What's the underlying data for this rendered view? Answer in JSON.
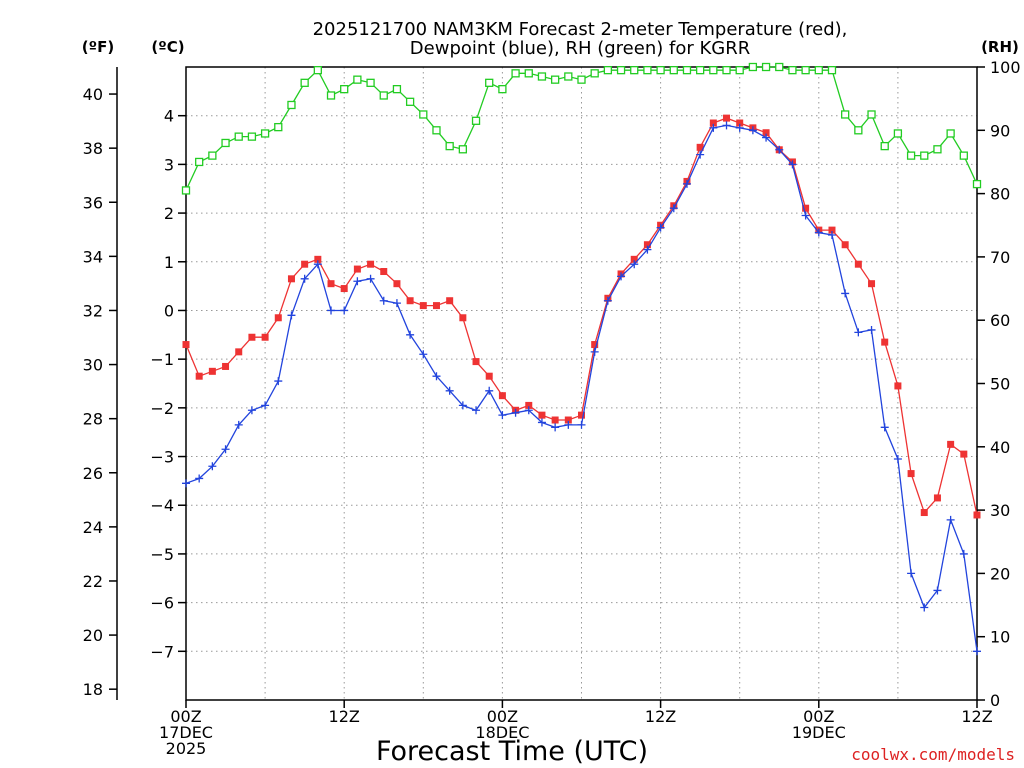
{
  "chart_data": {
    "type": "line",
    "title_line1": "2025121700 NAM3KM Forecast 2-meter Temperature (red),",
    "title_line2": "Dewpoint (blue), RH (green) for KGRR",
    "xlabel": "Forecast Time (UTC)",
    "credit": "coolwx.com/models",
    "unit_labels": {
      "fahrenheit": "(ºF)",
      "celsius": "(ºC)",
      "rh": "(RH)"
    },
    "x_range_hours": [
      0,
      60
    ],
    "x_ticks": [
      {
        "hour": 0,
        "lines": [
          "00Z",
          "17DEC",
          "2025"
        ]
      },
      {
        "hour": 12,
        "lines": [
          "12Z"
        ]
      },
      {
        "hour": 24,
        "lines": [
          "00Z",
          "18DEC"
        ]
      },
      {
        "hour": 36,
        "lines": [
          "12Z"
        ]
      },
      {
        "hour": 48,
        "lines": [
          "00Z",
          "19DEC"
        ]
      },
      {
        "hour": 60,
        "lines": [
          "12Z"
        ]
      }
    ],
    "celsius_range": [
      -8,
      5
    ],
    "celsius_ticks": [
      "4",
      "3",
      "2",
      "1",
      "0",
      "-1",
      "-2",
      "-3",
      "-4",
      "-5",
      "-6",
      "-7"
    ],
    "fahrenheit_ticks": [
      "40",
      "38",
      "36",
      "34",
      "32",
      "30",
      "28",
      "26",
      "24",
      "22",
      "20",
      "18"
    ],
    "rh_range": [
      0,
      100
    ],
    "rh_ticks": [
      "100",
      "90",
      "80",
      "70",
      "60",
      "50",
      "40",
      "30",
      "20",
      "10",
      "0"
    ],
    "hours": [
      0,
      1,
      2,
      3,
      4,
      5,
      6,
      7,
      8,
      9,
      10,
      11,
      12,
      13,
      14,
      15,
      16,
      17,
      18,
      19,
      20,
      21,
      22,
      23,
      24,
      25,
      26,
      27,
      28,
      29,
      30,
      31,
      32,
      33,
      34,
      35,
      36,
      37,
      38,
      39,
      40,
      41,
      42,
      43,
      44,
      45,
      46,
      47,
      48,
      49,
      50,
      51,
      52,
      53,
      54,
      55,
      56,
      57,
      58,
      59,
      60
    ],
    "series": [
      {
        "name": "Temperature",
        "unit": "C",
        "color": "#ee3333",
        "marker": "filled-square",
        "values": [
          -0.7,
          -1.35,
          -1.25,
          -1.15,
          -0.85,
          -0.55,
          -0.55,
          -0.15,
          0.65,
          0.95,
          1.05,
          0.55,
          0.45,
          0.85,
          0.95,
          0.8,
          0.55,
          0.2,
          0.1,
          0.1,
          0.2,
          -0.15,
          -1.05,
          -1.35,
          -1.75,
          -2.05,
          -1.95,
          -2.15,
          -2.25,
          -2.25,
          -2.15,
          -0.7,
          0.25,
          0.75,
          1.05,
          1.35,
          1.75,
          2.15,
          2.65,
          3.35,
          3.85,
          3.95,
          3.85,
          3.75,
          3.65,
          3.3,
          3.05,
          2.1,
          1.65,
          1.65,
          1.35,
          0.95,
          0.55,
          -0.65,
          -1.55,
          -3.35,
          -4.15,
          -3.85,
          -2.75,
          -2.95,
          -4.2
        ]
      },
      {
        "name": "Dewpoint",
        "unit": "C",
        "color": "#2244dd",
        "marker": "plus",
        "values": [
          -3.55,
          -3.45,
          -3.2,
          -2.85,
          -2.35,
          -2.05,
          -1.95,
          -1.45,
          -0.1,
          0.65,
          0.95,
          0.0,
          0.0,
          0.6,
          0.65,
          0.2,
          0.15,
          -0.5,
          -0.9,
          -1.35,
          -1.65,
          -1.95,
          -2.05,
          -1.65,
          -2.15,
          -2.1,
          -2.05,
          -2.3,
          -2.4,
          -2.35,
          -2.35,
          -0.85,
          0.2,
          0.7,
          0.95,
          1.25,
          1.7,
          2.1,
          2.6,
          3.2,
          3.75,
          3.8,
          3.75,
          3.7,
          3.55,
          3.3,
          3.0,
          1.95,
          1.6,
          1.55,
          0.35,
          -0.45,
          -0.4,
          -2.4,
          -3.05,
          -5.4,
          -6.1,
          -5.75,
          -4.3,
          -5.0,
          -7.0
        ]
      },
      {
        "name": "RH",
        "unit": "%",
        "color": "#22cc22",
        "marker": "open-square",
        "values": [
          80.5,
          85,
          86,
          88,
          89,
          89,
          89.5,
          90.5,
          94,
          97.5,
          99.5,
          95.5,
          96.5,
          98,
          97.5,
          95.5,
          96.5,
          94.5,
          92.5,
          90,
          87.5,
          87,
          91.5,
          97.5,
          96.5,
          99,
          99,
          98.5,
          98,
          98.5,
          98,
          99,
          99.5,
          99.5,
          99.5,
          99.5,
          99.5,
          99.5,
          99.5,
          99.5,
          99.5,
          99.5,
          99.5,
          100,
          100,
          100,
          99.5,
          99.5,
          99.5,
          99.5,
          92.5,
          90,
          92.5,
          87.5,
          89.5,
          86,
          86,
          87,
          89.5,
          86,
          81.5
        ]
      }
    ]
  }
}
